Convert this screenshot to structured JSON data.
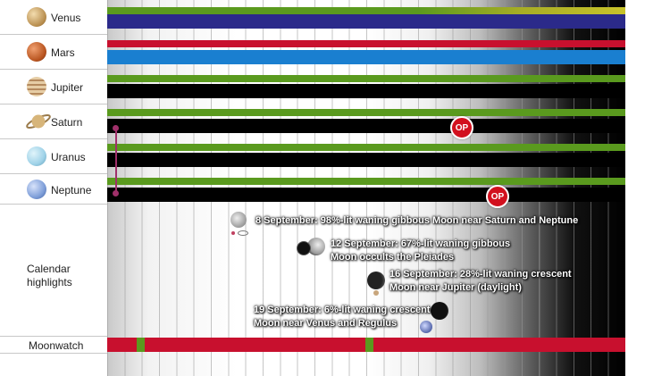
{
  "planets": [
    {
      "name": "Venus",
      "icon": "venus-icon",
      "color": "#c9a86a"
    },
    {
      "name": "Mars",
      "icon": "mars-icon",
      "color": "#c0552c"
    },
    {
      "name": "Jupiter",
      "icon": "jupiter-icon",
      "color": "#c8a67c"
    },
    {
      "name": "Saturn",
      "icon": "saturn-icon",
      "color": "#d7b57a"
    },
    {
      "name": "Uranus",
      "icon": "uranus-icon",
      "color": "#9fd2e8"
    },
    {
      "name": "Neptune",
      "icon": "neptune-icon",
      "color": "#7f9fd9"
    }
  ],
  "section_labels": {
    "calendar": "Calendar\nhighlights",
    "moonwatch": "Moonwatch"
  },
  "op_label": "OP",
  "events": [
    {
      "text": "8 September: 98%-lit waning gibbous Moon near Saturn and Neptune"
    },
    {
      "text": "12 September: 67%-lit waning gibbous",
      "text2": "Moon occults the Pleiades"
    },
    {
      "text": "16 September: 28%-lit waning crescent",
      "text2": "Moon near Jupiter (daylight)"
    },
    {
      "text": "19 September: 6%-lit waning crescent",
      "text2": "Moon near Venus and Regulus"
    }
  ],
  "colors": {
    "green": "#5a9a1e",
    "red": "#c8102e",
    "navy": "#2b2a8a",
    "blue": "#1a7fd0",
    "olive": "#b9b92a",
    "black": "#000000"
  }
}
